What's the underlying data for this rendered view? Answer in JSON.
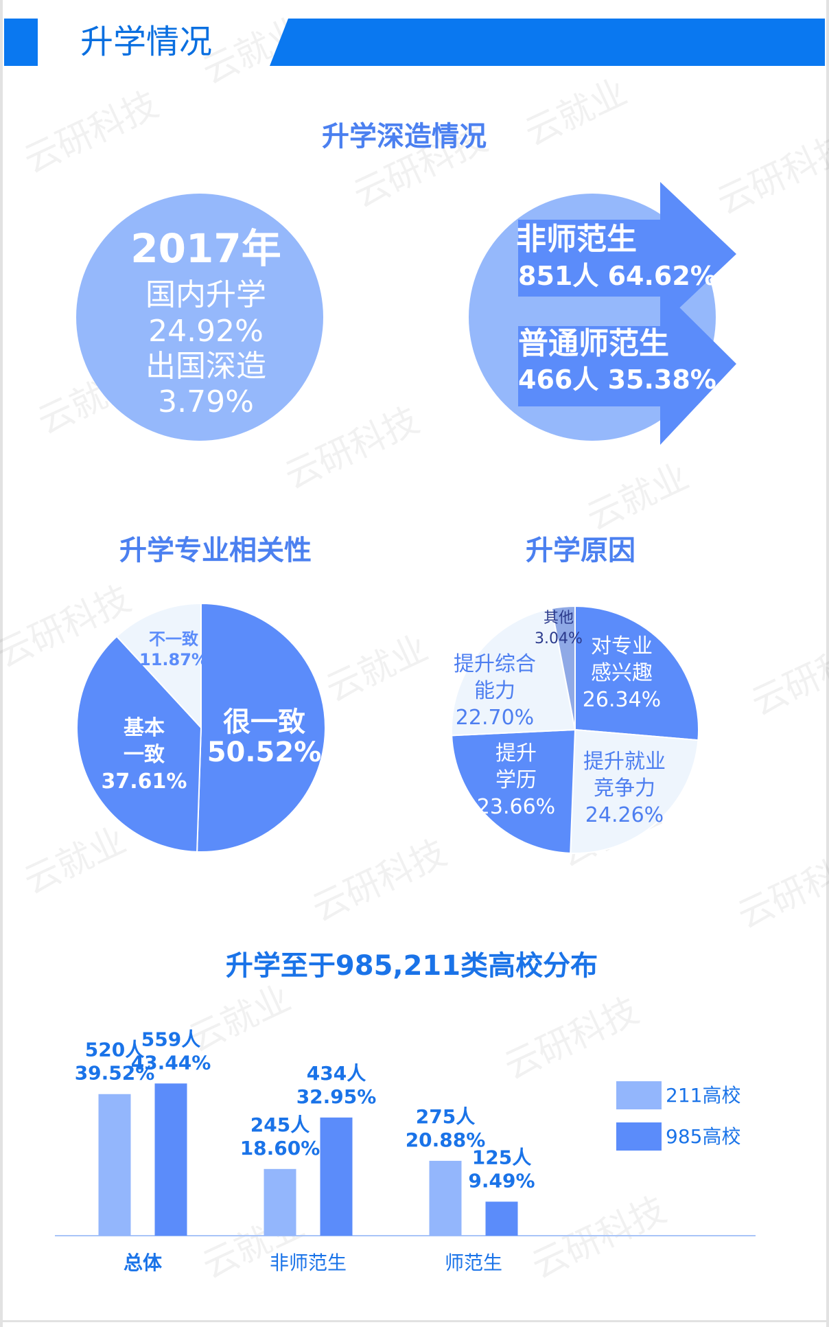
{
  "header": {
    "title": "升学情况"
  },
  "watermark": [
    "云研科技",
    "云就业"
  ],
  "overview": {
    "title": "升学深造情况",
    "year": "2017年",
    "items": [
      {
        "label": "国内升学",
        "value": "24.92%"
      },
      {
        "label": "出国深造",
        "value": "3.79%"
      }
    ],
    "groups": [
      {
        "name": "非师范生",
        "count": "851人",
        "share": "64.62%"
      },
      {
        "name": "普通师范生",
        "count": "466人",
        "share": "35.38%"
      }
    ]
  },
  "chart_data": [
    {
      "type": "pie",
      "title": "升学专业相关性",
      "categories": [
        "很一致",
        "基本一致",
        "不一致"
      ],
      "values": [
        50.52,
        37.61,
        11.87
      ],
      "value_labels": [
        "50.52%",
        "37.61%",
        "11.87%"
      ],
      "colors": [
        "#5b8cfa",
        "#5b8cfa",
        "#eef5fd"
      ]
    },
    {
      "type": "pie",
      "title": "升学原因",
      "categories": [
        "对专业感兴趣",
        "提升就业竞争力",
        "提升学历",
        "提升综合能力",
        "其他"
      ],
      "values": [
        26.34,
        24.26,
        23.66,
        22.7,
        3.04
      ],
      "value_labels": [
        "26.34%",
        "24.26%",
        "23.66%",
        "22.70%",
        "3.04%"
      ],
      "colors": [
        "#5b8cfa",
        "#eef5fd",
        "#5b8cfa",
        "#eef5fd",
        "#8fa9e6"
      ]
    },
    {
      "type": "bar",
      "title": "升学至于985,211类高校分布",
      "categories": [
        "总体",
        "非师范生",
        "师范生"
      ],
      "ylim": [
        0,
        600
      ],
      "series": [
        {
          "name": "211高校",
          "color": "#93b6fc",
          "values": [
            520,
            245,
            275
          ],
          "value_labels": [
            "520人",
            "245人",
            "275人"
          ],
          "shares": [
            "39.52%",
            "18.60%",
            "20.88%"
          ]
        },
        {
          "name": "985高校",
          "color": "#5b8cfa",
          "values": [
            559,
            434,
            125
          ],
          "value_labels": [
            "559人",
            "434人",
            "125人"
          ],
          "shares": [
            "43.44%",
            "32.95%",
            "9.49%"
          ]
        }
      ]
    }
  ]
}
